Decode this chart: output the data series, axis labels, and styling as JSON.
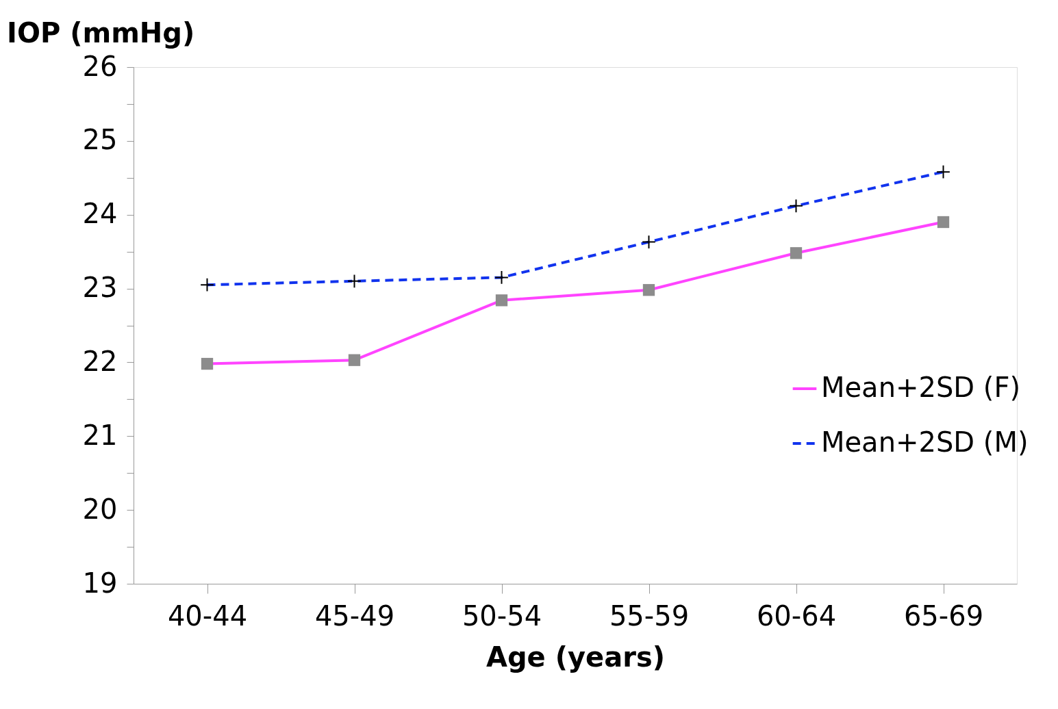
{
  "chart_data": {
    "type": "line",
    "xlabel": "Age (years)",
    "ylabel": "IOP (mmHg)",
    "categories": [
      "40-44",
      "45-49",
      "50-54",
      "55-59",
      "60-64",
      "65-69"
    ],
    "series": [
      {
        "name": "Mean+2SD (F)",
        "color": "#ff44ff",
        "marker": "square",
        "line_style": "solid",
        "values": [
          21.98,
          22.03,
          22.84,
          22.98,
          23.48,
          23.9
        ]
      },
      {
        "name": "Mean+2SD (M)",
        "color": "#1133ee",
        "marker": "cross",
        "line_style": "dashed",
        "values": [
          23.05,
          23.1,
          23.15,
          23.63,
          24.12,
          24.58
        ]
      }
    ],
    "ylim": [
      19,
      26
    ],
    "yticks": [
      19,
      {
        "value": 19.5,
        "label": null
      },
      20,
      {
        "value": 20.5,
        "label": null
      },
      21,
      {
        "value": 21.5,
        "label": null
      },
      22,
      {
        "value": 22.5,
        "label": null
      },
      23,
      {
        "value": 23.5,
        "label": null
      },
      24,
      {
        "value": 24.5,
        "label": null
      },
      25,
      {
        "value": 25.5,
        "label": null
      },
      26
    ],
    "grid": false,
    "legend": "right"
  }
}
